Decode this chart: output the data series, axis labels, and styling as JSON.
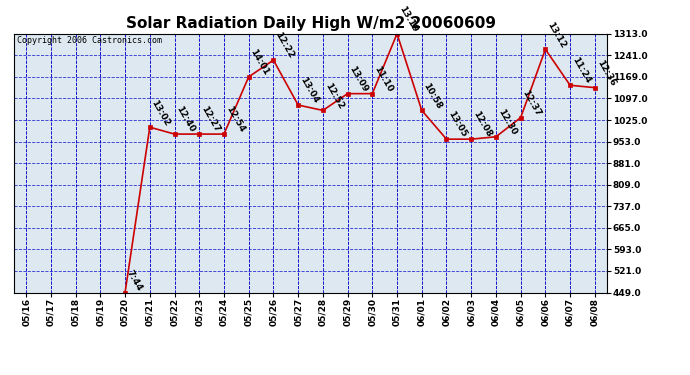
{
  "title": "Solar Radiation Daily High W/m2 20060609",
  "copyright": "Copyright 2006 Castronics.com",
  "background_color": "#ffffff",
  "plot_bg_color": "#dde8f0",
  "grid_color": "#0000cc",
  "line_color": "#cc0000",
  "marker_color": "#cc0000",
  "dates": [
    "05/16",
    "05/17",
    "05/18",
    "05/19",
    "05/20",
    "05/21",
    "05/22",
    "05/23",
    "05/24",
    "05/25",
    "05/26",
    "05/27",
    "05/28",
    "05/29",
    "05/30",
    "05/31",
    "06/01",
    "06/02",
    "06/03",
    "06/04",
    "06/05",
    "06/06",
    "06/07",
    "06/08"
  ],
  "values": [
    null,
    null,
    null,
    null,
    449.0,
    1001.0,
    978.0,
    978.0,
    978.0,
    1169.0,
    1225.0,
    1075.0,
    1057.0,
    1113.0,
    1113.0,
    1313.0,
    1057.0,
    961.0,
    961.0,
    969.0,
    1033.0,
    1261.0,
    1141.0,
    1133.0
  ],
  "labels": [
    null,
    null,
    null,
    null,
    "7:44",
    "13:02",
    "12:40",
    "12:27",
    "12:54",
    "14:01",
    "12:22",
    "13:04",
    "12:52",
    "13:09",
    "11:10",
    "13:19",
    "10:58",
    "13:05",
    "12:08",
    "12:30",
    "12:37",
    "13:12",
    "11:24",
    "12:36"
  ],
  "ylim": [
    449.0,
    1313.0
  ],
  "yticks": [
    449.0,
    521.0,
    593.0,
    665.0,
    737.0,
    809.0,
    881.0,
    953.0,
    1025.0,
    1097.0,
    1169.0,
    1241.0,
    1313.0
  ],
  "title_fontsize": 11,
  "tick_fontsize": 6.5,
  "label_fontsize": 6.5,
  "copyright_fontsize": 6
}
